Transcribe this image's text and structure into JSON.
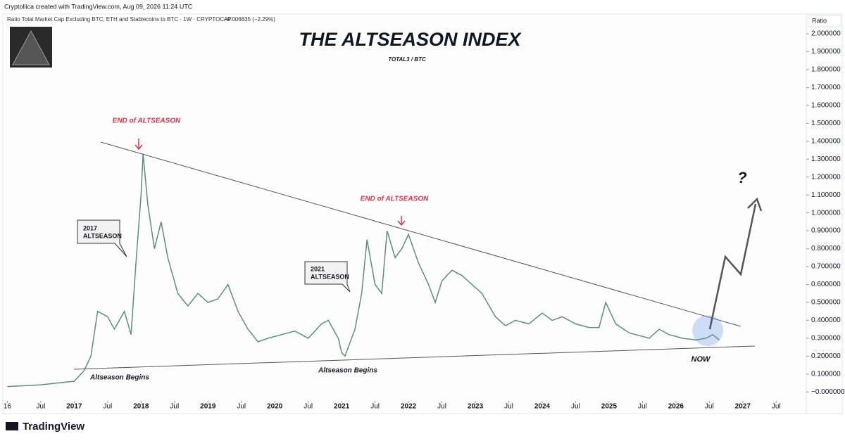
{
  "header": {
    "credit": "Cryptollica created with TradingView.com, Aug 09, 2026 11:24 UTC",
    "symbol": "Ratio Total Market Cap Excluding BTC, ETH and Stablecoins to BTC · 1W · CRYPTOCAP",
    "change": "−0.006835 (−2.29%)",
    "scale_label": "Ratio"
  },
  "footer": {
    "brand": "TradingView"
  },
  "chart_data": {
    "type": "line",
    "title": "THE ALTSEASON INDEX",
    "subtitle": "TOTAL3 / BTC",
    "color": "#5b8f7a",
    "x": [
      2016.0,
      2016.5,
      2017.0,
      2017.15,
      2017.25,
      2017.35,
      2017.5,
      2017.6,
      2017.75,
      2017.85,
      2017.92,
      2018.0,
      2018.03,
      2018.1,
      2018.2,
      2018.3,
      2018.4,
      2018.55,
      2018.7,
      2018.85,
      2019.0,
      2019.15,
      2019.3,
      2019.45,
      2019.6,
      2019.75,
      2019.9,
      2020.1,
      2020.3,
      2020.5,
      2020.7,
      2020.8,
      2020.95,
      2021.0,
      2021.05,
      2021.2,
      2021.3,
      2021.38,
      2021.5,
      2021.6,
      2021.68,
      2021.8,
      2021.9,
      2022.0,
      2022.15,
      2022.3,
      2022.4,
      2022.5,
      2022.65,
      2022.8,
      2022.95,
      2023.1,
      2023.3,
      2023.45,
      2023.6,
      2023.8,
      2024.0,
      2024.15,
      2024.3,
      2024.5,
      2024.7,
      2024.85,
      2024.95,
      2025.1,
      2025.3,
      2025.5,
      2025.6,
      2025.75,
      2025.9,
      2026.1,
      2026.3,
      2026.45,
      2026.55,
      2026.65
    ],
    "values": [
      0.03,
      0.04,
      0.06,
      0.12,
      0.2,
      0.45,
      0.42,
      0.35,
      0.45,
      0.32,
      0.7,
      1.1,
      1.33,
      1.05,
      0.8,
      0.95,
      0.75,
      0.55,
      0.48,
      0.55,
      0.5,
      0.52,
      0.6,
      0.45,
      0.35,
      0.28,
      0.3,
      0.32,
      0.34,
      0.3,
      0.38,
      0.4,
      0.3,
      0.22,
      0.2,
      0.35,
      0.55,
      0.85,
      0.6,
      0.55,
      0.9,
      0.75,
      0.8,
      0.88,
      0.72,
      0.6,
      0.5,
      0.62,
      0.68,
      0.65,
      0.6,
      0.55,
      0.42,
      0.37,
      0.4,
      0.38,
      0.44,
      0.4,
      0.42,
      0.38,
      0.36,
      0.36,
      0.5,
      0.38,
      0.33,
      0.31,
      0.3,
      0.35,
      0.32,
      0.3,
      0.29,
      0.3,
      0.32,
      0.29
    ],
    "xlim": [
      2015.89,
      2027.95
    ],
    "ylim": [
      -0.05,
      2.11
    ],
    "xticks": [
      {
        "value": 2016,
        "label": "16"
      },
      {
        "value": 2016.5,
        "label": "Jul"
      },
      2017,
      {
        "value": 2017.5,
        "label": "Jul"
      },
      2018,
      {
        "value": 2018.5,
        "label": "Jul"
      },
      2019,
      {
        "value": 2019.5,
        "label": "Jul"
      },
      2020,
      {
        "value": 2020.5,
        "label": "Jul"
      },
      2021,
      {
        "value": 2021.5,
        "label": "Jul"
      },
      2022,
      {
        "value": 2022.5,
        "label": "Jul"
      },
      2023,
      {
        "value": 2023.5,
        "label": "Jul"
      },
      2024,
      {
        "value": 2024.5,
        "label": "Jul"
      },
      2025,
      {
        "value": 2025.5,
        "label": "Jul"
      },
      2026,
      {
        "value": 2026.5,
        "label": "Jul"
      },
      2027,
      {
        "value": 2027.5,
        "label": "Jul"
      }
    ],
    "yticks": [
      {
        "value": 0,
        "label": "−0.000000"
      },
      {
        "value": 0.1,
        "label": "0.100000"
      },
      {
        "value": 0.2,
        "label": "0.200000"
      },
      {
        "value": 0.3,
        "label": "0.300000"
      },
      {
        "value": 0.4,
        "label": "0.400000"
      },
      {
        "value": 0.5,
        "label": "0.500000"
      },
      {
        "value": 0.6,
        "label": "0.600000"
      },
      {
        "value": 0.7,
        "label": "0.700000"
      },
      {
        "value": 0.8,
        "label": "0.800000"
      },
      {
        "value": 0.9,
        "label": "0.900000"
      },
      {
        "value": 1.0,
        "label": "1.000000"
      },
      {
        "value": 1.1,
        "label": "1.100000"
      },
      {
        "value": 1.2,
        "label": "1.200000"
      },
      {
        "value": 1.3,
        "label": "1.300000"
      },
      {
        "value": 1.4,
        "label": "1.400000"
      },
      {
        "value": 1.5,
        "label": "1.500000"
      },
      {
        "value": 1.6,
        "label": "1.600000"
      },
      {
        "value": 1.7,
        "label": "1.700000"
      },
      {
        "value": 1.8,
        "label": "1.800000"
      },
      {
        "value": 1.9,
        "label": "1.900000"
      },
      {
        "value": 2.0,
        "label": "2.000000"
      }
    ],
    "annotations": [
      "END of ALTSEASON",
      "END of ALTSEASON",
      "2017",
      "ALTSEASON",
      "2021",
      "ALTSEASON",
      "Altseason Begins",
      "Altseason Begins",
      "NOW",
      "?"
    ]
  }
}
